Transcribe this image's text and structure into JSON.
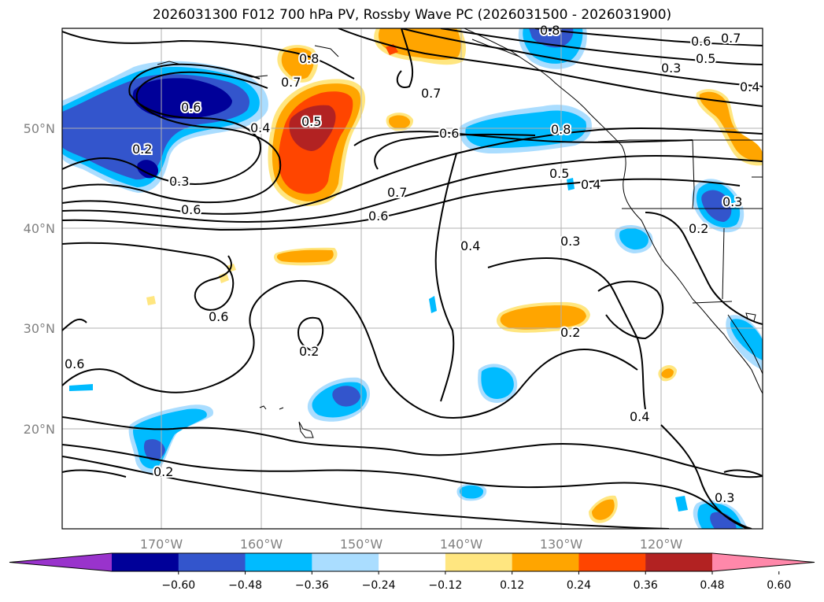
{
  "title": "2026031300 F012 700 hPa PV, Rossby Wave PC (2026031500 - 2026031900)",
  "lon_labels": [
    "170°W",
    "160°W",
    "150°W",
    "140°W",
    "130°W",
    "120°W"
  ],
  "lat_labels": [
    "50°N",
    "40°N",
    "30°N",
    "20°N"
  ],
  "colorbar": {
    "colors": [
      "#9933cc",
      "#000099",
      "#3355cc",
      "#00bbff",
      "#aaddff",
      "#ffffff",
      "#ffe680",
      "#ffa500",
      "#ff4500",
      "#b22222",
      "#ff88aa"
    ],
    "tick_labels": [
      "−0.60",
      "−0.48",
      "−0.36",
      "−0.24",
      "−0.12",
      "0.12",
      "0.24",
      "0.36",
      "0.48",
      "0.60"
    ]
  },
  "contour_labels": [
    "0.6",
    "0.7",
    "0.8",
    "0.7",
    "0.5",
    "0.3",
    "0.4",
    "0.8",
    "0.6",
    "0.2",
    "0.3",
    "0.6",
    "0.4",
    "0.5",
    "0.7",
    "0.6",
    "0.7",
    "0.8",
    "0.6",
    "0.5",
    "0.4",
    "0.3",
    "0.2",
    "0.4",
    "0.3",
    "0.6",
    "0.2",
    "0.2",
    "0.6",
    "0.2",
    "0.4",
    "0.3"
  ]
}
